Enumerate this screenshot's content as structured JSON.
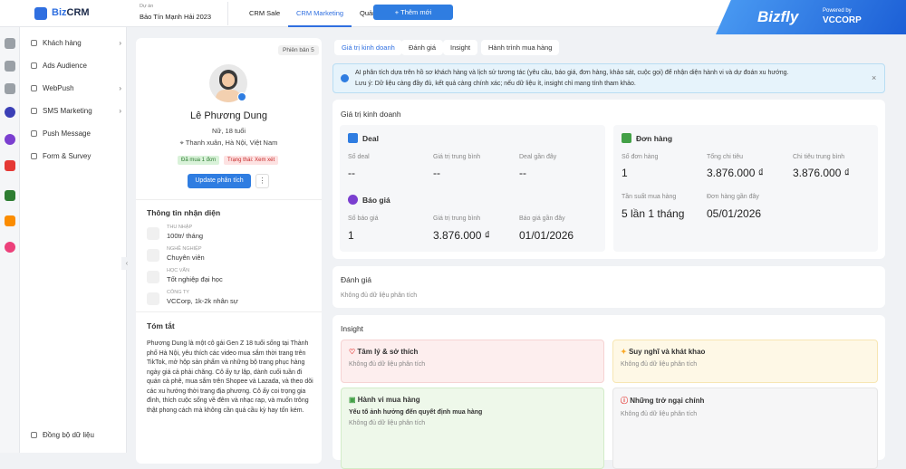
{
  "topbar": {
    "logo_biz": "Biz",
    "logo_crm": "CRM",
    "project_label": "Dự án",
    "project_value": "Bảo Tín Mạnh Hải 2023",
    "tabs": [
      "CRM Sale",
      "CRM Marketing",
      "Quản lý"
    ],
    "add_button": "+ Thêm mới",
    "brand": "Bizfly",
    "powered_by": "Powered by",
    "brand_partner": "VCCORP"
  },
  "sidebar": {
    "menu": [
      "Khách hàng",
      "Ads Audience",
      "WebPush",
      "SMS Marketing",
      "Push Message",
      "Form & Survey"
    ],
    "sync": "Đồng bộ dữ liệu"
  },
  "profile": {
    "version": "Phiên bản 5",
    "name": "Lê Phương Dung",
    "gender_age": "Nữ, 18 tuổi",
    "location": "Thanh xuân, Hà Nội, Việt Nam",
    "badges": [
      "Đã mua 1 đơn",
      "Trạng thái: Xem xét"
    ],
    "update_button": "Update phân tích",
    "identity": {
      "title": "Thông tin nhận diện",
      "items": [
        {
          "label": "THU NHẬP",
          "value": "100tr/ tháng"
        },
        {
          "label": "NGHỀ NGHIỆP",
          "value": "Chuyên viên"
        },
        {
          "label": "HỌC VẤN",
          "value": "Tốt nghiệp đại học"
        },
        {
          "label": "CÔNG TY",
          "value": "VCCorp, 1k-2k nhân sự"
        }
      ]
    },
    "summary": {
      "title": "Tóm tắt",
      "text": "Phương Dung là một cô gái Gen Z 18 tuổi sống tại Thành phố Hà Nội, yêu thích các video mua sắm thời trang trên TikTok, mở hộp sản phẩm và những bộ trang phục hàng ngày giá cả phải chăng. Cô ấy tự lập, dành cuối tuần đi quán cà phê, mua sắm trên Shopee và Lazada, và theo dõi các xu hướng thời trang địa phương. Cô ấy coi trọng gia đình, thích cuộc sống về đêm và nhạc rap, và muốn trông thật phong cách mà không cần quá cầu kỳ hay tốn kém."
    }
  },
  "detail": {
    "tabs": [
      "Giá trị kinh doanh",
      "Đánh giá",
      "Insight",
      "Hành trình mua hàng"
    ],
    "alert": [
      "AI phân tích dựa trên hồ sơ khách hàng và lịch sử tương tác (yêu cầu, báo giá, đơn hàng, khảo sát, cuộc gọi) để nhận diện hành vi và dự đoán xu hướng.",
      "Lưu ý: Dữ liệu càng đầy đủ, kết quả càng chính xác; nếu dữ liệu ít, insight chỉ mang tính tham khảo."
    ],
    "business": {
      "title": "Giá trị kinh doanh",
      "deal": {
        "title": "Deal",
        "metrics": [
          {
            "label": "Số deal",
            "value": "--"
          },
          {
            "label": "Giá trị trung bình",
            "value": "--"
          },
          {
            "label": "Deal gần đây",
            "value": "--"
          }
        ]
      },
      "quote": {
        "title": "Báo giá",
        "metrics": [
          {
            "label": "Số báo giá",
            "value": "1"
          },
          {
            "label": "Giá trị trung bình",
            "value": "3.876.000 ₫"
          },
          {
            "label": "Báo giá gần đây",
            "value": "01/01/2026"
          }
        ]
      },
      "order": {
        "title": "Đơn hàng",
        "metrics": [
          {
            "label": "Số đơn hàng",
            "value": "1"
          },
          {
            "label": "Tổng chi tiêu",
            "value": "3.876.000 ₫"
          },
          {
            "label": "Chi tiêu trung bình",
            "value": "3.876.000 ₫"
          },
          {
            "label": "Tần suất mua hàng",
            "value": "5 lần 1 tháng"
          },
          {
            "label": "Đơn hàng gần đây",
            "value": "05/01/2026"
          }
        ]
      }
    },
    "evaluation": {
      "title": "Đánh giá",
      "note": "Không đủ dữ liệu phân tích"
    },
    "insight": {
      "title": "Insight",
      "cards": [
        {
          "title": "Tâm lý & sở thích",
          "note": "Không đủ dữ liệu phân tích"
        },
        {
          "title": "Suy nghĩ và khát khao",
          "note": "Không đủ dữ liệu phân tích"
        },
        {
          "title": "Hành vi mua hàng",
          "subtitle": "Yếu tố ảnh hưởng đến quyết định mua hàng",
          "note": "Không đủ dữ liệu phân tích"
        },
        {
          "title": "Những trở ngại chính",
          "note": "Không đủ dữ liệu phân tích"
        }
      ]
    }
  }
}
